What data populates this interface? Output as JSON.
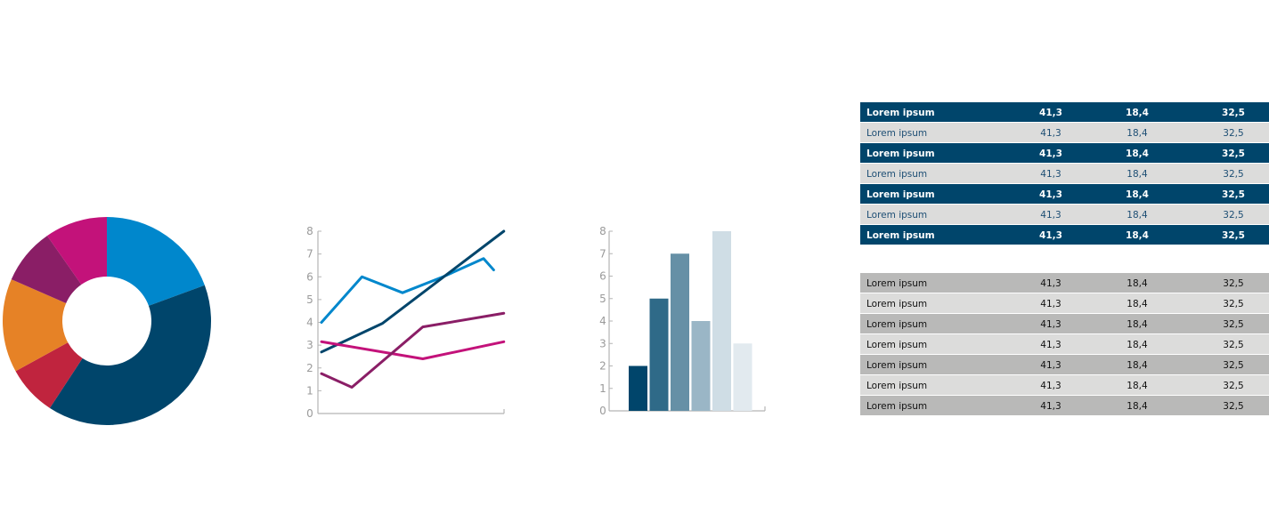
{
  "chart_data": [
    {
      "type": "pie",
      "title": "",
      "slices": [
        {
          "value": 20,
          "color": "#0087cc"
        },
        {
          "value": 41,
          "color": "#00456b"
        },
        {
          "value": 8,
          "color": "#c0243e"
        },
        {
          "value": 15,
          "color": "#e68226"
        },
        {
          "value": 9,
          "color": "#8a1e66"
        },
        {
          "value": 10,
          "color": "#c3127a"
        }
      ]
    },
    {
      "type": "line",
      "title": "",
      "xlabel": "",
      "ylabel": "",
      "ylim": [
        0,
        8
      ],
      "yticks": [
        "0",
        "1",
        "2",
        "3",
        "4",
        "5",
        "6",
        "7",
        "8"
      ],
      "grid": false,
      "series": [
        {
          "color": "#0087cc",
          "x": [
            0,
            1,
            2,
            3,
            4,
            4.25
          ],
          "y": [
            4,
            6,
            5.3,
            6.0,
            6.8,
            6.3
          ]
        },
        {
          "color": "#00456b",
          "x": [
            0,
            1.5,
            4.5
          ],
          "y": [
            2.7,
            3.95,
            8
          ]
        },
        {
          "color": "#c3127a",
          "x": [
            0,
            2.5,
            4.5
          ],
          "y": [
            3.15,
            2.4,
            3.15
          ]
        },
        {
          "color": "#8a1e66",
          "x": [
            0,
            0.75,
            2.5,
            4.5
          ],
          "y": [
            1.75,
            1.15,
            3.8,
            4.4
          ]
        }
      ]
    },
    {
      "type": "bar",
      "title": "",
      "xlabel": "",
      "ylabel": "",
      "ylim": [
        0,
        8
      ],
      "yticks": [
        "0",
        "1",
        "2",
        "3",
        "4",
        "5",
        "6",
        "7",
        "8"
      ],
      "categories": [
        "",
        "",
        "",
        "",
        "",
        ""
      ],
      "values": [
        2,
        5,
        7,
        4,
        8,
        3
      ],
      "colors": [
        "#00456b",
        "#2f6a88",
        "#6690a6",
        "#9ab6c6",
        "#cfdde5",
        "#e2eaef"
      ]
    },
    {
      "type": "table",
      "style": "dark",
      "rows": [
        [
          "Lorem ipsum",
          "41,3",
          "18,4",
          "32,5"
        ],
        [
          "Lorem ipsum",
          "41,3",
          "18,4",
          "32,5"
        ],
        [
          "Lorem ipsum",
          "41,3",
          "18,4",
          "32,5"
        ],
        [
          "Lorem ipsum",
          "41,3",
          "18,4",
          "32,5"
        ],
        [
          "Lorem ipsum",
          "41,3",
          "18,4",
          "32,5"
        ],
        [
          "Lorem ipsum",
          "41,3",
          "18,4",
          "32,5"
        ],
        [
          "Lorem ipsum",
          "41,3",
          "18,4",
          "32,5"
        ]
      ],
      "colors": {
        "bg_a": "#00456b",
        "text_a": "#ffffff",
        "bg_b": "#dcdcdb",
        "text_b": "#1d4e74"
      }
    },
    {
      "type": "table",
      "style": "grey",
      "rows": [
        [
          "Lorem ipsum",
          "41,3",
          "18,4",
          "32,5"
        ],
        [
          "Lorem ipsum",
          "41,3",
          "18,4",
          "32,5"
        ],
        [
          "Lorem ipsum",
          "41,3",
          "18,4",
          "32,5"
        ],
        [
          "Lorem ipsum",
          "41,3",
          "18,4",
          "32,5"
        ],
        [
          "Lorem ipsum",
          "41,3",
          "18,4",
          "32,5"
        ],
        [
          "Lorem ipsum",
          "41,3",
          "18,4",
          "32,5"
        ],
        [
          "Lorem ipsum",
          "41,3",
          "18,4",
          "32,5"
        ]
      ],
      "colors": {
        "bg_a": "#b9b9b8",
        "text_a": "#111111",
        "bg_b": "#dcdcdb",
        "text_b": "#111111"
      }
    }
  ]
}
